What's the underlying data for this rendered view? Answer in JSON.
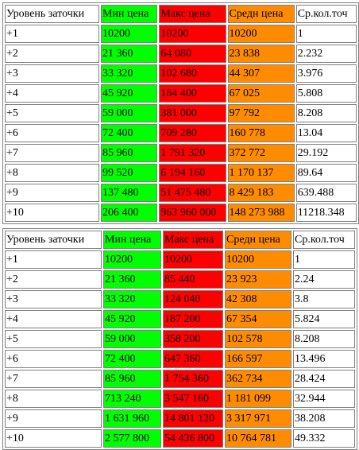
{
  "colors": {
    "min": "#00ff00",
    "max": "#ff0000",
    "avg": "#ff8c00",
    "border": "#808080"
  },
  "tables": [
    {
      "headers": [
        "Уровень заточки",
        "Мин цена",
        "Макс цена",
        "Средн цена",
        "Ср.кол.точ"
      ],
      "rows": [
        [
          "+1",
          "10200",
          "10200",
          "10200",
          "1"
        ],
        [
          "+2",
          "21 360",
          "64 080",
          "23 838",
          "2.232"
        ],
        [
          "+3",
          "33 320",
          "102 680",
          "44 307",
          "3.976"
        ],
        [
          "+4",
          "45 920",
          "164 400",
          "67 025",
          "5.808"
        ],
        [
          "+5",
          "59 000",
          "381 000",
          "97 792",
          "8.208"
        ],
        [
          "+6",
          "72 400",
          "709 280",
          "160 778",
          "13.04"
        ],
        [
          "+7",
          "85 960",
          "1 791 320",
          "372 772",
          "29.192"
        ],
        [
          "+8",
          "99 520",
          "6 194 160",
          "1 170 137",
          "89.64"
        ],
        [
          "+9",
          "137 480",
          "51 475 480",
          "8 429 183",
          "639.488"
        ],
        [
          "+10",
          "206 400",
          "963 960 000",
          "148 273 988",
          "11218.348"
        ]
      ]
    },
    {
      "headers": [
        "Уровень заточки",
        "Мин цена",
        "Макс цена",
        "Средн цена",
        "Ср.кол.точ"
      ],
      "rows": [
        [
          "+1",
          "10200",
          "10200",
          "10200",
          "1"
        ],
        [
          "+2",
          "21 360",
          "85 440",
          "23 923",
          "2.24"
        ],
        [
          "+3",
          "33 320",
          "124 040",
          "42 308",
          "3.8"
        ],
        [
          "+4",
          "45 920",
          "187 200",
          "67 354",
          "5.824"
        ],
        [
          "+5",
          "59 000",
          "358 200",
          "102 578",
          "8.208"
        ],
        [
          "+6",
          "72 400",
          "647 360",
          "166 597",
          "13.496"
        ],
        [
          "+7",
          "85 960",
          "1 754 360",
          "362 734",
          "28.424"
        ],
        [
          "+8",
          "713 240",
          "3 547 160",
          "1 181 099",
          "32.944"
        ],
        [
          "+9",
          "1 631 960",
          "14 801 120",
          "3 317 971",
          "38.208"
        ],
        [
          "+10",
          "2 577 800",
          "54 436 800",
          "10 764 781",
          "49.332"
        ]
      ]
    }
  ]
}
